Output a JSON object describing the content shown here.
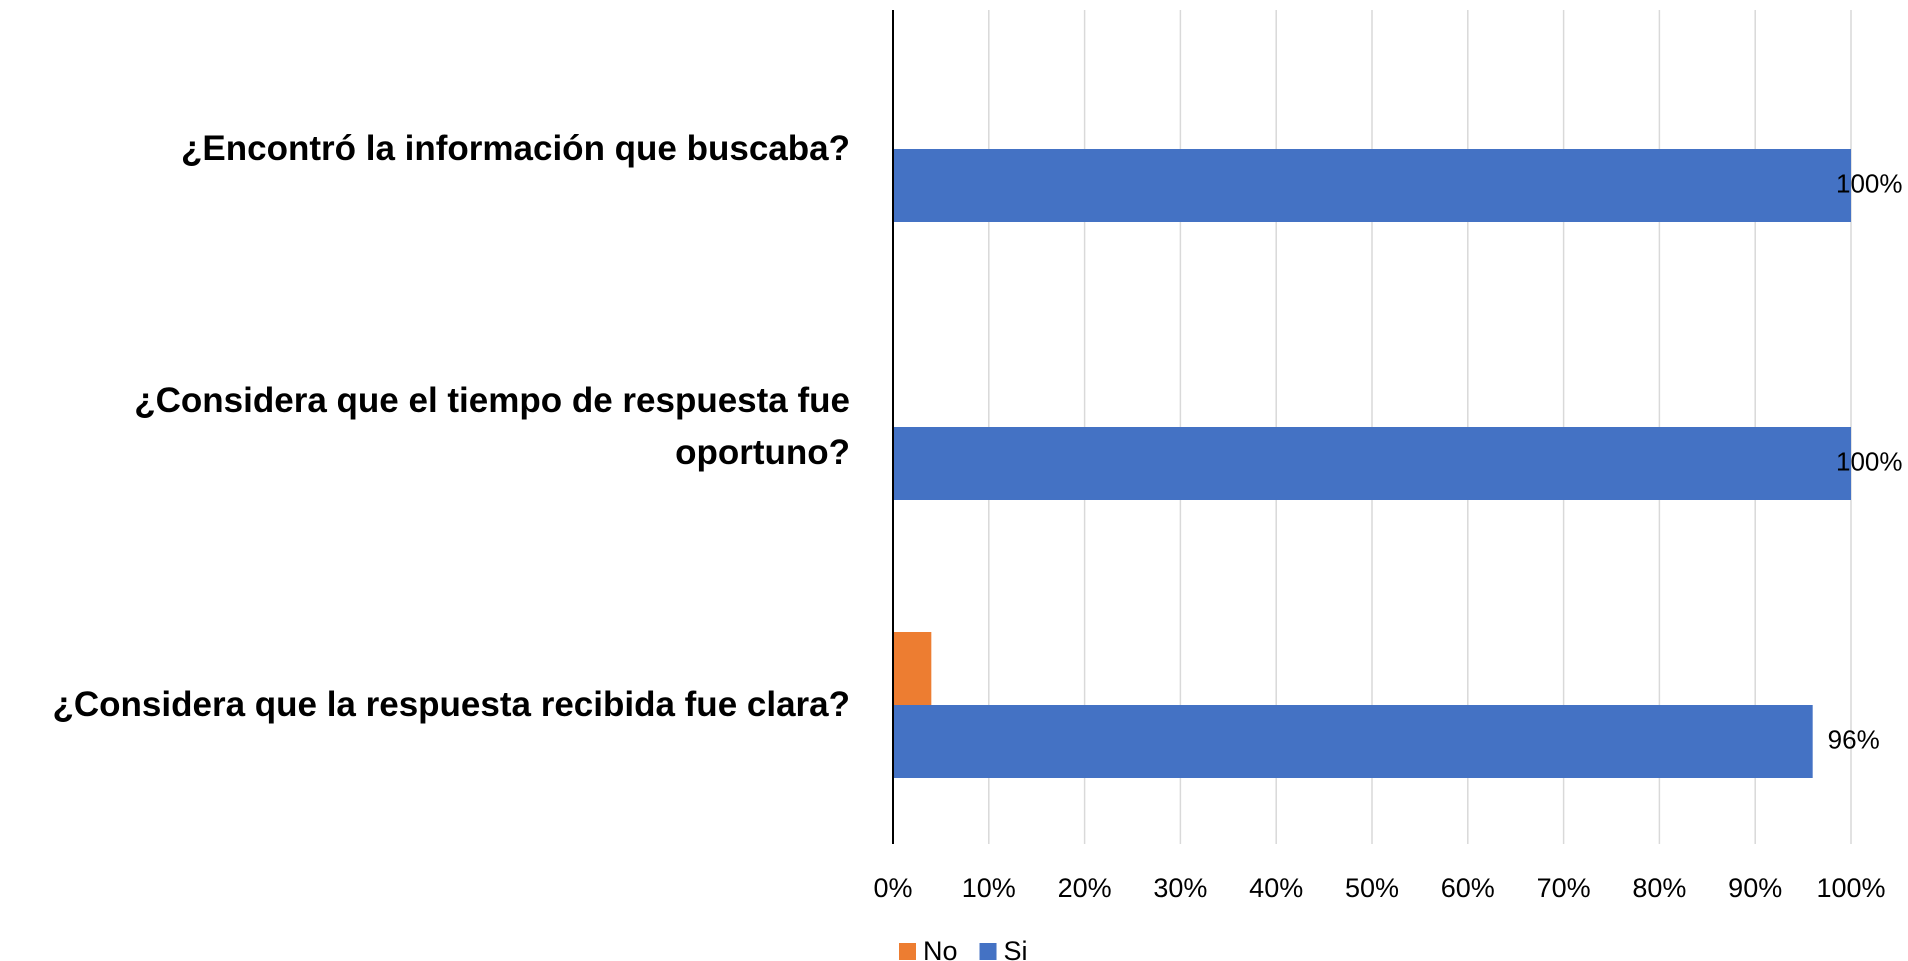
{
  "chart_data": {
    "type": "hbar",
    "categories": [
      "¿Encontró la información que buscaba?",
      "¿Considera que el tiempo de respuesta fue oportuno?",
      "¿Considera que la respuesta recibida fue clara?"
    ],
    "series": [
      {
        "name": "No",
        "color": "#ED7D31",
        "values": [
          0,
          0,
          4
        ]
      },
      {
        "name": "Si",
        "color": "#4472C4",
        "values": [
          100,
          100,
          96
        ],
        "value_labels": [
          "100%",
          "100%",
          "96%"
        ]
      }
    ],
    "xlim": [
      0,
      100
    ],
    "xticks": [
      {
        "value": 0,
        "label": "0%"
      },
      {
        "value": 10,
        "label": "10%"
      },
      {
        "value": 20,
        "label": "20%"
      },
      {
        "value": 30,
        "label": "30%"
      },
      {
        "value": 40,
        "label": "40%"
      },
      {
        "value": 50,
        "label": "50%"
      },
      {
        "value": 60,
        "label": "60%"
      },
      {
        "value": 70,
        "label": "70%"
      },
      {
        "value": 80,
        "label": "80%"
      },
      {
        "value": 90,
        "label": "90%"
      },
      {
        "value": 100,
        "label": "100%"
      }
    ],
    "grid": true,
    "legend": "bottom"
  }
}
